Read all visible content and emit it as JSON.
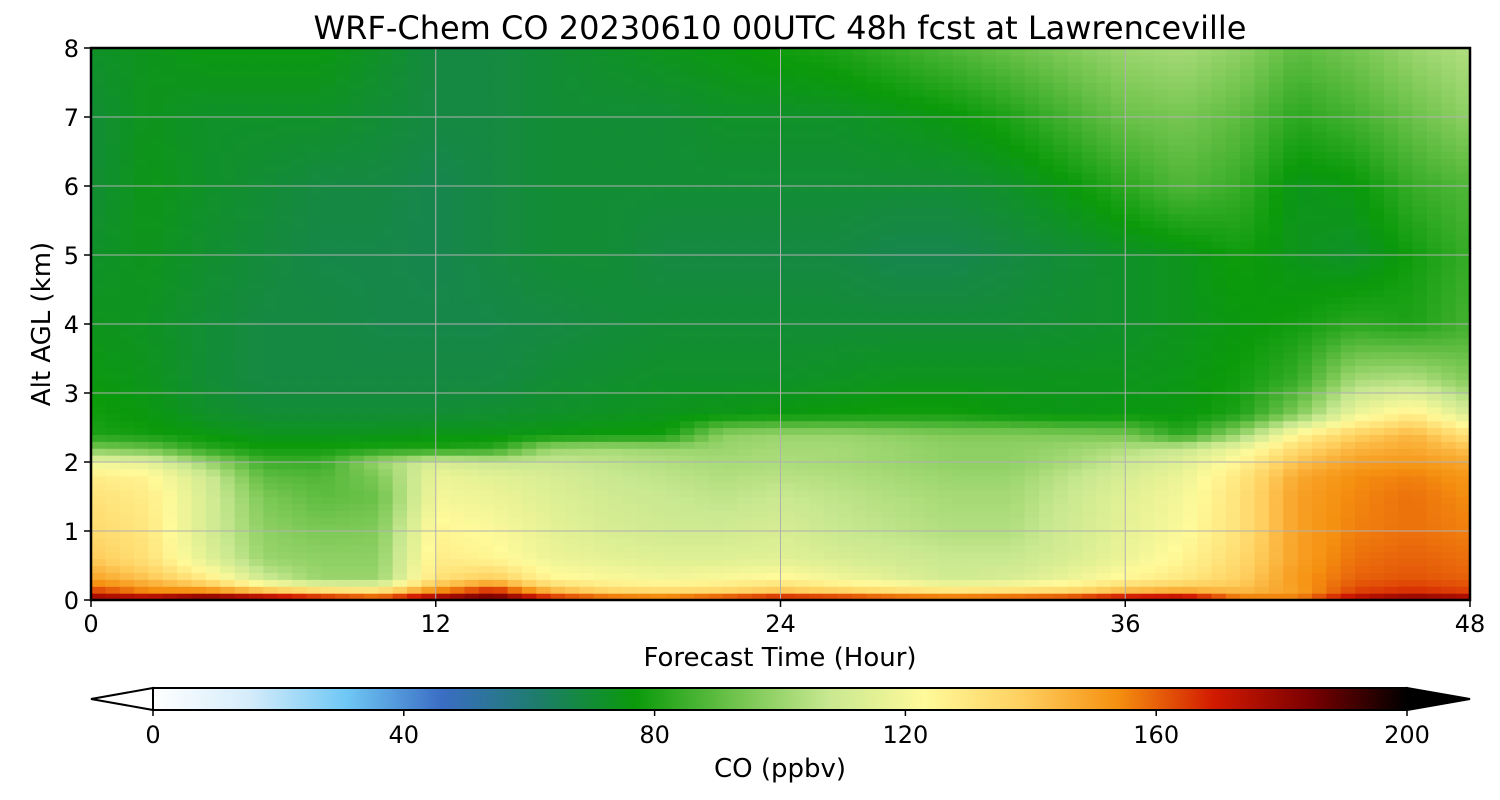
{
  "chart_data": {
    "type": "heatmap",
    "title": "WRF-Chem CO  20230610 00UTC 48h fcst at Lawrenceville",
    "xlabel": "Forecast Time (Hour)",
    "ylabel": "Alt AGL (km)",
    "xlim": [
      0,
      48
    ],
    "ylim": [
      0,
      8
    ],
    "x_ticks": [
      0,
      12,
      24,
      36,
      48
    ],
    "y_ticks": [
      0,
      1,
      2,
      3,
      4,
      5,
      6,
      7,
      8
    ],
    "grid": true,
    "colorbar": {
      "label": "CO  (ppbv)",
      "orientation": "horizontal",
      "placement": "bottom",
      "vmin": 0,
      "vmax": 200,
      "extend": "both",
      "ticks": [
        0,
        40,
        80,
        120,
        160,
        200
      ],
      "colors": [
        "#ffffff",
        "#d5ecfa",
        "#6fc8f5",
        "#3a6dc4",
        "#1d7d6a",
        "#0a9a0a",
        "#6cc24a",
        "#c8e890",
        "#fffa9a",
        "#ffd060",
        "#f59010",
        "#d21a00",
        "#7a0000",
        "#000000"
      ]
    },
    "x": [
      0,
      2,
      4,
      6,
      8,
      10,
      12,
      14,
      16,
      18,
      20,
      22,
      24,
      26,
      28,
      30,
      32,
      34,
      36,
      38,
      40,
      42,
      44,
      46,
      48
    ],
    "y": [
      0,
      0.1,
      0.3,
      0.6,
      1.0,
      1.5,
      1.8,
      2.0,
      2.2,
      2.4,
      2.7,
      3.2,
      4.0,
      5.0,
      6.0,
      7.0,
      8.0
    ],
    "z": [
      [
        185,
        188,
        200,
        195,
        185,
        175,
        190,
        195,
        178,
        172,
        170,
        178,
        185,
        182,
        176,
        174,
        176,
        180,
        188,
        190,
        165,
        160,
        180,
        190,
        185
      ],
      [
        168,
        158,
        160,
        150,
        143,
        140,
        160,
        175,
        150,
        140,
        138,
        140,
        145,
        142,
        138,
        136,
        138,
        140,
        148,
        152,
        145,
        150,
        165,
        168,
        165
      ],
      [
        150,
        142,
        130,
        110,
        100,
        100,
        132,
        140,
        125,
        122,
        120,
        122,
        125,
        120,
        115,
        110,
        112,
        118,
        125,
        130,
        138,
        152,
        160,
        162,
        160
      ],
      [
        140,
        132,
        115,
        100,
        98,
        98,
        128,
        125,
        118,
        116,
        114,
        114,
        115,
        112,
        110,
        108,
        108,
        112,
        118,
        125,
        135,
        150,
        158,
        160,
        158
      ],
      [
        135,
        130,
        112,
        98,
        95,
        96,
        125,
        122,
        116,
        112,
        110,
        110,
        112,
        108,
        106,
        104,
        104,
        110,
        116,
        122,
        132,
        150,
        156,
        158,
        156
      ],
      [
        132,
        128,
        112,
        95,
        90,
        92,
        120,
        118,
        114,
        110,
        108,
        106,
        108,
        106,
        104,
        102,
        102,
        108,
        115,
        120,
        132,
        150,
        155,
        158,
        154
      ],
      [
        128,
        125,
        110,
        90,
        88,
        95,
        118,
        115,
        112,
        108,
        106,
        104,
        105,
        104,
        102,
        100,
        100,
        106,
        112,
        118,
        130,
        148,
        154,
        156,
        152
      ],
      [
        118,
        115,
        100,
        85,
        84,
        100,
        112,
        108,
        108,
        106,
        104,
        102,
        103,
        102,
        100,
        98,
        98,
        102,
        108,
        114,
        125,
        142,
        150,
        152,
        148
      ],
      [
        95,
        92,
        82,
        78,
        78,
        80,
        80,
        82,
        100,
        102,
        100,
        100,
        102,
        102,
        100,
        98,
        98,
        100,
        104,
        108,
        118,
        135,
        145,
        148,
        142
      ],
      [
        80,
        78,
        76,
        74,
        74,
        74,
        75,
        75,
        76,
        77,
        78,
        98,
        100,
        100,
        98,
        96,
        96,
        95,
        94,
        82,
        100,
        125,
        138,
        145,
        132
      ],
      [
        78,
        76,
        72,
        70,
        70,
        70,
        70,
        71,
        72,
        73,
        74,
        75,
        76,
        77,
        78,
        78,
        76,
        75,
        76,
        76,
        80,
        96,
        118,
        128,
        112
      ],
      [
        76,
        74,
        70,
        68,
        68,
        68,
        68,
        68,
        70,
        71,
        72,
        72,
        72,
        73,
        74,
        74,
        74,
        74,
        74,
        75,
        78,
        84,
        102,
        104,
        96
      ],
      [
        74,
        73,
        70,
        68,
        68,
        67,
        67,
        67,
        68,
        69,
        70,
        70,
        70,
        70,
        70,
        70,
        70,
        71,
        72,
        74,
        76,
        78,
        82,
        80,
        86
      ],
      [
        72,
        74,
        71,
        69,
        67,
        67,
        66,
        68,
        70,
        70,
        68,
        68,
        68,
        68,
        66,
        66,
        68,
        70,
        72,
        74,
        78,
        74,
        72,
        78,
        84
      ],
      [
        70,
        75,
        72,
        70,
        68,
        68,
        66,
        68,
        70,
        70,
        70,
        70,
        70,
        70,
        70,
        70,
        72,
        76,
        82,
        88,
        84,
        74,
        76,
        84,
        88
      ],
      [
        70,
        74,
        72,
        72,
        72,
        70,
        68,
        68,
        70,
        70,
        70,
        72,
        72,
        72,
        74,
        76,
        80,
        86,
        92,
        94,
        90,
        82,
        86,
        92,
        98
      ],
      [
        72,
        74,
        76,
        76,
        76,
        72,
        68,
        68,
        70,
        72,
        74,
        76,
        78,
        80,
        84,
        88,
        92,
        96,
        100,
        102,
        98,
        90,
        94,
        100,
        104
      ]
    ]
  }
}
